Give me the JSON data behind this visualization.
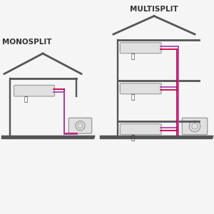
{
  "bg_color": "#f5f5f5",
  "line_color": "#555555",
  "pipe_red": "#cc0044",
  "pipe_purple": "#aa44aa",
  "unit_color": "#e0e0e0",
  "unit_edge": "#999999",
  "title_multi": "MULTISPLIT",
  "title_mono": "MONOSPLIT",
  "label_A": "Ⓐ",
  "label_B": "Ⓑ",
  "label_C": "Ⓒ",
  "lw_struct": 2.0,
  "lw_pipe": 1.3,
  "lw_floor": 2.5
}
